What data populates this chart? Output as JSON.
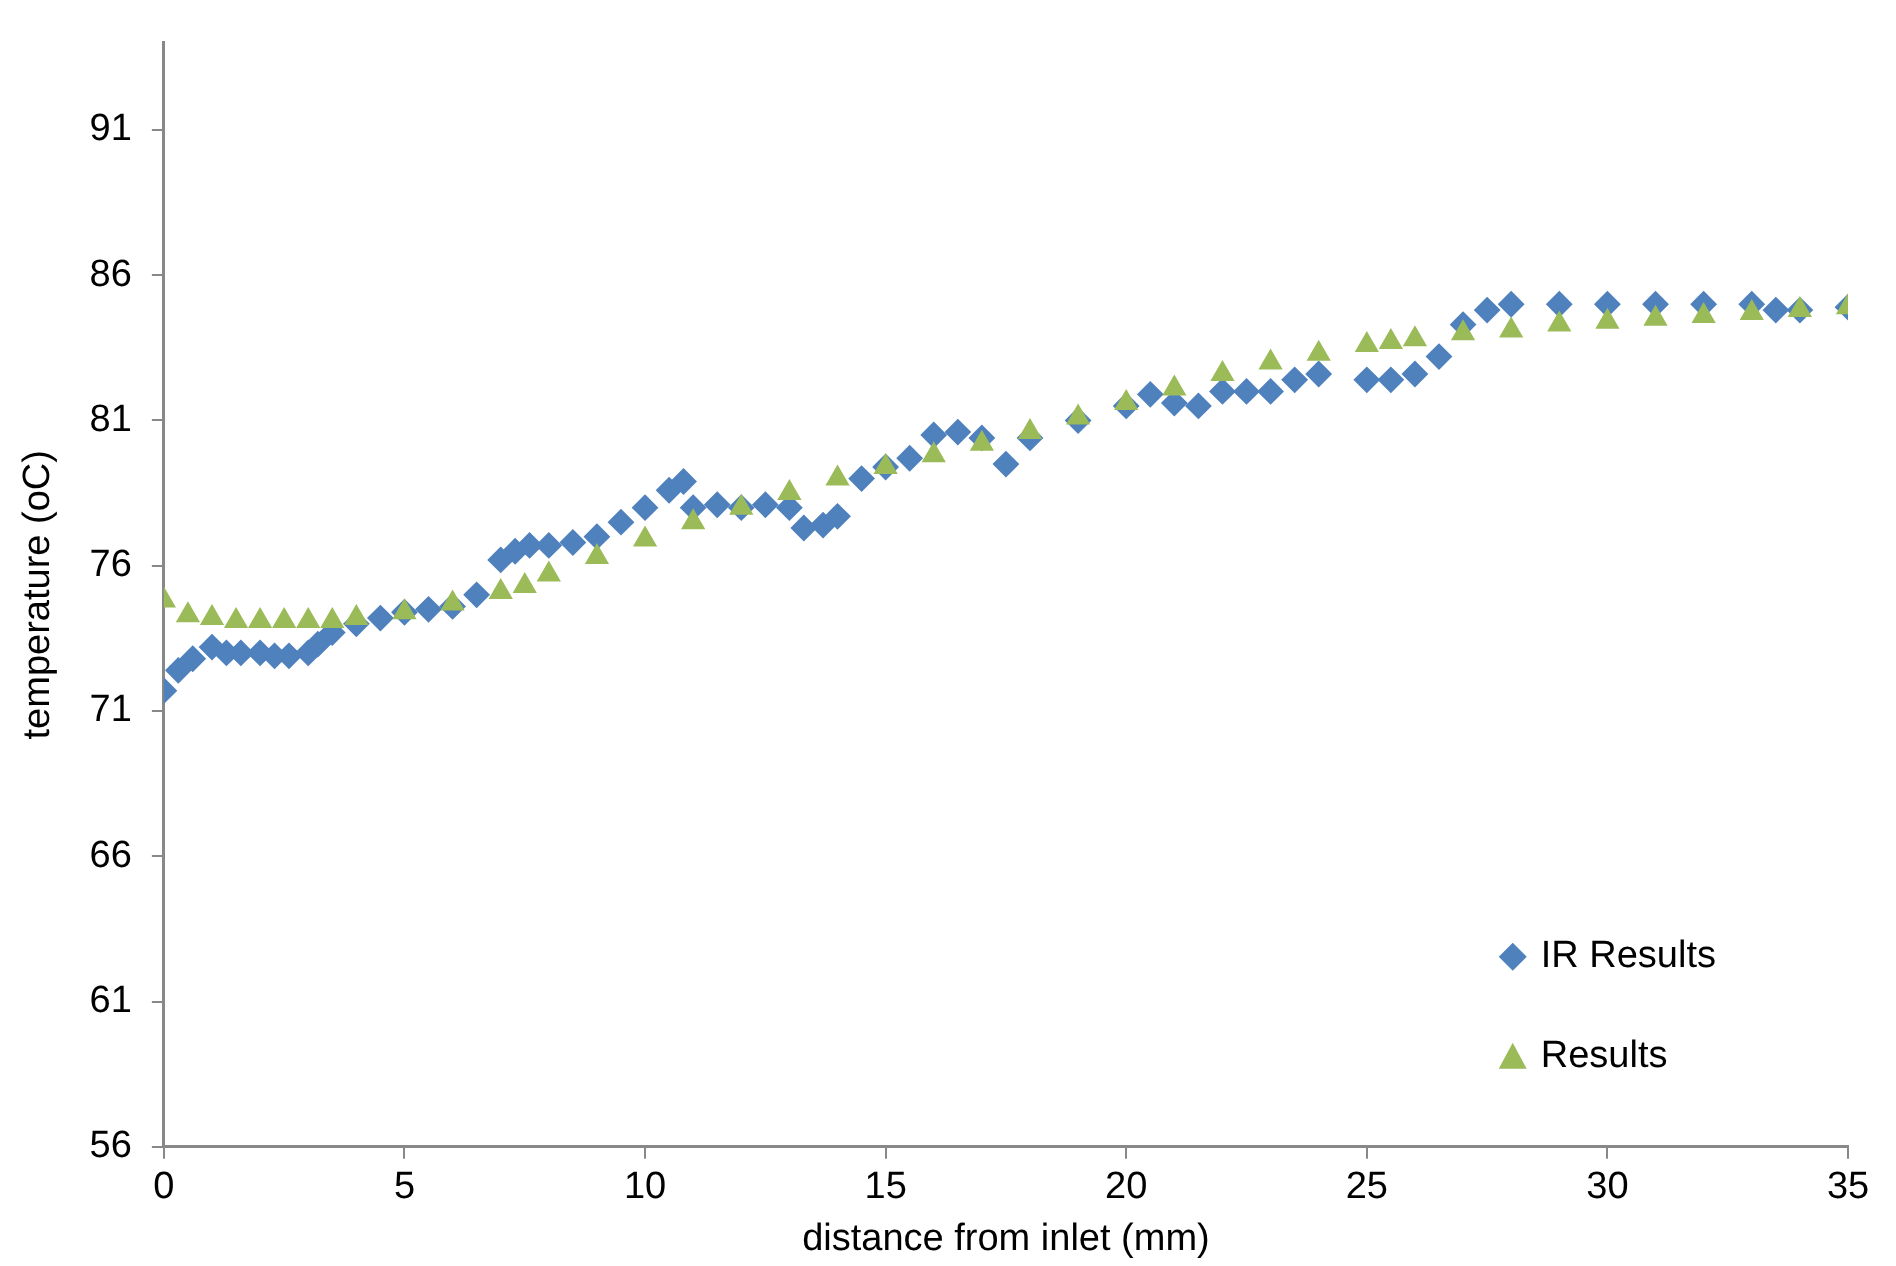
{
  "chart_data": {
    "type": "scatter",
    "xlabel": "distance from inlet (mm)",
    "ylabel": "temperature (oC)",
    "xlim": [
      0,
      35
    ],
    "xticks": [
      0,
      5,
      10,
      15,
      20,
      25,
      30,
      35
    ],
    "ylim": [
      56,
      94
    ],
    "yticks": [
      56,
      61,
      66,
      71,
      76,
      81,
      86,
      91
    ],
    "grid": false,
    "legend": "bottom right",
    "series": [
      {
        "name": "IR Results",
        "color": "#4f81bd",
        "marker": "diamond",
        "x": [
          0,
          0.3,
          0.6,
          1,
          1.3,
          1.6,
          2,
          2.3,
          2.6,
          3,
          3.2,
          3.5,
          4,
          4.5,
          5,
          5.5,
          6,
          6.5,
          7,
          7.3,
          7.6,
          8,
          8.5,
          9,
          9.5,
          10,
          10.5,
          10.8,
          11,
          11.5,
          12,
          12.5,
          13,
          13.3,
          13.7,
          14,
          14.5,
          15,
          15.5,
          16,
          16.5,
          17,
          17.5,
          18,
          19,
          20,
          20.5,
          21,
          21.5,
          22,
          22.5,
          23,
          23.5,
          24,
          25,
          25.5,
          26,
          26.5,
          27,
          27.5,
          28,
          29,
          30,
          31,
          32,
          33,
          33.5,
          34,
          35
        ],
        "values": [
          71.7,
          72.4,
          72.8,
          73.2,
          73,
          73,
          73,
          72.9,
          72.9,
          73,
          73.3,
          73.7,
          74,
          74.2,
          74.4,
          74.5,
          74.6,
          75,
          76.2,
          76.5,
          76.7,
          76.7,
          76.8,
          77,
          77.5,
          78,
          78.6,
          78.9,
          78,
          78.1,
          78,
          78.1,
          78,
          77.3,
          77.4,
          77.7,
          79,
          79.4,
          79.7,
          80.5,
          80.6,
          80.4,
          79.5,
          80.4,
          81,
          81.5,
          81.9,
          81.6,
          81.5,
          82,
          82,
          82,
          82.4,
          82.6,
          82.4,
          82.4,
          82.6,
          83.2,
          84.3,
          84.8,
          85,
          85,
          85,
          85,
          85,
          85,
          84.8,
          84.8,
          84.9
        ]
      },
      {
        "name": "Results",
        "color": "#9bbb59",
        "marker": "triangle",
        "x": [
          0,
          0.5,
          1,
          1.5,
          2,
          2.5,
          3,
          3.5,
          4,
          5,
          6,
          7,
          7.5,
          8,
          9,
          10,
          11,
          12,
          13,
          14,
          15,
          16,
          17,
          18,
          19,
          20,
          21,
          22,
          23,
          24,
          25,
          25.5,
          26,
          27,
          28,
          29,
          30,
          31,
          32,
          33,
          34,
          35
        ],
        "values": [
          74.8,
          74.3,
          74.2,
          74.1,
          74.1,
          74.1,
          74.1,
          74.1,
          74.2,
          74.4,
          74.7,
          75.1,
          75.3,
          75.7,
          76.3,
          76.9,
          77.5,
          78,
          78.5,
          79,
          79.4,
          79.8,
          80.2,
          80.6,
          81.1,
          81.6,
          82.1,
          82.6,
          83,
          83.3,
          83.6,
          83.7,
          83.8,
          84,
          84.1,
          84.3,
          84.4,
          84.5,
          84.6,
          84.7,
          84.8,
          84.9
        ]
      }
    ]
  }
}
